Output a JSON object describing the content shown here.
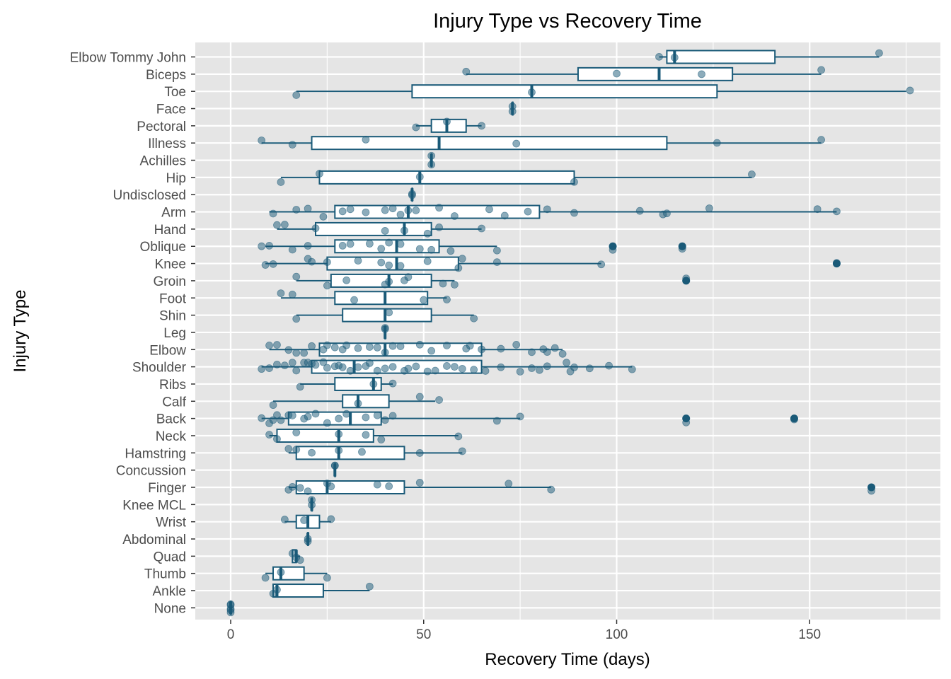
{
  "chart_data": {
    "type": "boxplot",
    "title": "Injury Type vs Recovery Time",
    "xlabel": "Recovery Time (days)",
    "ylabel": "Injury Type",
    "xlim": [
      -9,
      184
    ],
    "x_ticks": [
      0,
      50,
      100,
      150
    ],
    "grid": true,
    "colors": {
      "panel": "#e5e5e5",
      "grid": "#ffffff",
      "box_stroke": "#1a5a78",
      "box_fill": "#ffffff",
      "point": "#1a5a78",
      "tick_text": "#4d4d4d",
      "tick_mark": "#333333"
    },
    "categories": [
      "Elbow Tommy John",
      "Biceps",
      "Toe",
      "Face",
      "Pectoral",
      "Illness",
      "Achilles",
      "Hip",
      "Undisclosed",
      "Arm",
      "Hand",
      "Oblique",
      "Knee",
      "Groin",
      "Foot",
      "Shin",
      "Leg",
      "Elbow",
      "Shoulder",
      "Ribs",
      "Calf",
      "Back",
      "Neck",
      "Hamstring",
      "Concussion",
      "Finger",
      "Knee MCL",
      "Wrist",
      "Abdominal",
      "Quad",
      "Thumb",
      "Ankle",
      "None"
    ],
    "boxes": [
      {
        "category": "Elbow Tommy John",
        "whisker_low": 111,
        "q1": 113,
        "median": 115,
        "q3": 141,
        "whisker_high": 168,
        "outliers": []
      },
      {
        "category": "Biceps",
        "whisker_low": 61,
        "q1": 90,
        "median": 111,
        "q3": 130,
        "whisker_high": 153,
        "outliers": []
      },
      {
        "category": "Toe",
        "whisker_low": 17,
        "q1": 47,
        "median": 78,
        "q3": 126,
        "whisker_high": 175,
        "outliers": []
      },
      {
        "category": "Face",
        "whisker_low": 73,
        "q1": 73,
        "median": 73,
        "q3": 73,
        "whisker_high": 73,
        "outliers": []
      },
      {
        "category": "Pectoral",
        "whisker_low": 48,
        "q1": 52,
        "median": 56,
        "q3": 61,
        "whisker_high": 65,
        "outliers": []
      },
      {
        "category": "Illness",
        "whisker_low": 8,
        "q1": 21,
        "median": 54,
        "q3": 113,
        "whisker_high": 153,
        "outliers": []
      },
      {
        "category": "Achilles",
        "whisker_low": 52,
        "q1": 52,
        "median": 52,
        "q3": 52,
        "whisker_high": 52,
        "outliers": []
      },
      {
        "category": "Hip",
        "whisker_low": 13,
        "q1": 23,
        "median": 49,
        "q3": 89,
        "whisker_high": 135,
        "outliers": []
      },
      {
        "category": "Undisclosed",
        "whisker_low": 47,
        "q1": 47,
        "median": 47,
        "q3": 47,
        "whisker_high": 47,
        "outliers": []
      },
      {
        "category": "Arm",
        "whisker_low": 10,
        "q1": 27,
        "median": 46,
        "q3": 80,
        "whisker_high": 157,
        "outliers": []
      },
      {
        "category": "Hand",
        "whisker_low": 12,
        "q1": 22,
        "median": 45,
        "q3": 52,
        "whisker_high": 65,
        "outliers": []
      },
      {
        "category": "Oblique",
        "whisker_low": 9,
        "q1": 27,
        "median": 43,
        "q3": 54,
        "whisker_high": 69,
        "outliers": [
          99,
          117
        ]
      },
      {
        "category": "Knee",
        "whisker_low": 9,
        "q1": 25,
        "median": 43,
        "q3": 59,
        "whisker_high": 96,
        "outliers": [
          157
        ]
      },
      {
        "category": "Groin",
        "whisker_low": 17,
        "q1": 26,
        "median": 41,
        "q3": 52,
        "whisker_high": 58,
        "outliers": [
          118
        ]
      },
      {
        "category": "Foot",
        "whisker_low": 13,
        "q1": 27,
        "median": 40,
        "q3": 51,
        "whisker_high": 56,
        "outliers": []
      },
      {
        "category": "Shin",
        "whisker_low": 17,
        "q1": 29,
        "median": 40,
        "q3": 52,
        "whisker_high": 63,
        "outliers": []
      },
      {
        "category": "Leg",
        "whisker_low": 40,
        "q1": 40,
        "median": 40,
        "q3": 40,
        "whisker_high": 40,
        "outliers": []
      },
      {
        "category": "Elbow",
        "whisker_low": 10,
        "q1": 23,
        "median": 40,
        "q3": 65,
        "whisker_high": 86,
        "outliers": []
      },
      {
        "category": "Shoulder",
        "whisker_low": 8,
        "q1": 21,
        "median": 32,
        "q3": 65,
        "whisker_high": 104,
        "outliers": []
      },
      {
        "category": "Ribs",
        "whisker_low": 18,
        "q1": 27,
        "median": 37,
        "q3": 39,
        "whisker_high": 42,
        "outliers": []
      },
      {
        "category": "Calf",
        "whisker_low": 11,
        "q1": 29,
        "median": 33,
        "q3": 41,
        "whisker_high": 53,
        "outliers": []
      },
      {
        "category": "Back",
        "whisker_low": 8,
        "q1": 15,
        "median": 31,
        "q3": 39,
        "whisker_high": 75,
        "outliers": [
          118,
          146
        ]
      },
      {
        "category": "Neck",
        "whisker_low": 10,
        "q1": 12,
        "median": 28,
        "q3": 37,
        "whisker_high": 59,
        "outliers": []
      },
      {
        "category": "Hamstring",
        "whisker_low": 15,
        "q1": 17,
        "median": 28,
        "q3": 45,
        "whisker_high": 60,
        "outliers": []
      },
      {
        "category": "Concussion",
        "whisker_low": 27,
        "q1": 27,
        "median": 27,
        "q3": 27,
        "whisker_high": 27,
        "outliers": []
      },
      {
        "category": "Finger",
        "whisker_low": 15,
        "q1": 17,
        "median": 25,
        "q3": 45,
        "whisker_high": 83,
        "outliers": [
          166
        ]
      },
      {
        "category": "Knee MCL",
        "whisker_low": 21,
        "q1": 21,
        "median": 21,
        "q3": 21,
        "whisker_high": 21,
        "outliers": []
      },
      {
        "category": "Wrist",
        "whisker_low": 14,
        "q1": 17,
        "median": 20,
        "q3": 23,
        "whisker_high": 26,
        "outliers": []
      },
      {
        "category": "Abdominal",
        "whisker_low": 20,
        "q1": 20,
        "median": 20,
        "q3": 20,
        "whisker_high": 20,
        "outliers": []
      },
      {
        "category": "Quad",
        "whisker_low": 16,
        "q1": 16,
        "median": 17,
        "q3": 17,
        "whisker_high": 18,
        "outliers": []
      },
      {
        "category": "Thumb",
        "whisker_low": 9,
        "q1": 11,
        "median": 13,
        "q3": 19,
        "whisker_high": 25,
        "outliers": []
      },
      {
        "category": "Ankle",
        "whisker_low": 11,
        "q1": 11,
        "median": 12,
        "q3": 24,
        "whisker_high": 36,
        "outliers": []
      },
      {
        "category": "None",
        "whisker_low": 0,
        "q1": 0,
        "median": 0,
        "q3": 0,
        "whisker_high": 0,
        "outliers": []
      }
    ],
    "points": [
      {
        "category": "Elbow Tommy John",
        "x": [
          111,
          115,
          168
        ]
      },
      {
        "category": "Biceps",
        "x": [
          61,
          100,
          122,
          153
        ]
      },
      {
        "category": "Toe",
        "x": [
          17,
          78,
          176
        ]
      },
      {
        "category": "Face",
        "x": [
          73,
          73
        ]
      },
      {
        "category": "Pectoral",
        "x": [
          48,
          56,
          65
        ]
      },
      {
        "category": "Illness",
        "x": [
          8,
          16,
          35,
          74,
          126,
          153
        ]
      },
      {
        "category": "Achilles",
        "x": [
          52,
          52
        ]
      },
      {
        "category": "Hip",
        "x": [
          13,
          23,
          49,
          89,
          135
        ]
      },
      {
        "category": "Undisclosed",
        "x": [
          47,
          47
        ]
      },
      {
        "category": "Arm",
        "x": [
          11,
          17,
          20,
          24,
          29,
          31,
          35,
          40,
          42,
          44,
          46,
          48,
          54,
          58,
          67,
          71,
          77,
          82,
          89,
          106,
          112,
          113,
          124,
          152,
          157
        ]
      },
      {
        "category": "Hand",
        "x": [
          12,
          14,
          22,
          40,
          45,
          51,
          54,
          65
        ]
      },
      {
        "category": "Oblique",
        "x": [
          8,
          10,
          16,
          20,
          29,
          31,
          36,
          39,
          41,
          44,
          49,
          52,
          57,
          69,
          99,
          117
        ]
      },
      {
        "category": "Knee",
        "x": [
          9,
          11,
          20,
          21,
          25,
          33,
          39,
          41,
          44,
          51,
          59,
          60,
          69,
          96,
          157
        ]
      },
      {
        "category": "Groin",
        "x": [
          17,
          25,
          30,
          40,
          41,
          45,
          46,
          55,
          58,
          118
        ]
      },
      {
        "category": "Foot",
        "x": [
          13,
          16,
          32,
          50,
          56
        ]
      },
      {
        "category": "Shin",
        "x": [
          17,
          41,
          63
        ]
      },
      {
        "category": "Leg",
        "x": [
          40,
          40
        ]
      },
      {
        "category": "Elbow",
        "x": [
          10,
          12,
          15,
          17,
          19,
          21,
          24,
          25,
          27,
          29,
          30,
          33,
          36,
          38,
          40,
          42,
          44,
          49,
          52,
          56,
          61,
          62,
          65,
          70,
          74,
          78,
          81,
          82,
          84,
          86
        ]
      },
      {
        "category": "Shoulder",
        "x": [
          8,
          10,
          12,
          14,
          16,
          17,
          19,
          20,
          21,
          22,
          24,
          25,
          27,
          28,
          29,
          31,
          33,
          35,
          36,
          38,
          40,
          42,
          45,
          46,
          48,
          51,
          53,
          56,
          58,
          60,
          63,
          66,
          70,
          75,
          78,
          80,
          82,
          87,
          88,
          89,
          93,
          98,
          104
        ]
      },
      {
        "category": "Ribs",
        "x": [
          18,
          37,
          42
        ]
      },
      {
        "category": "Calf",
        "x": [
          11,
          33,
          49,
          54
        ]
      },
      {
        "category": "Back",
        "x": [
          8,
          10,
          11,
          12,
          13,
          15,
          16,
          19,
          20,
          22,
          25,
          28,
          30,
          35,
          38,
          40,
          42,
          69,
          75,
          118,
          146
        ]
      },
      {
        "category": "Neck",
        "x": [
          10,
          12,
          17,
          28,
          35,
          39,
          59
        ]
      },
      {
        "category": "Hamstring",
        "x": [
          15,
          17,
          21,
          28,
          34,
          49,
          60
        ]
      },
      {
        "category": "Concussion",
        "x": [
          27,
          27
        ]
      },
      {
        "category": "Finger",
        "x": [
          15,
          16,
          18,
          20,
          25,
          26,
          38,
          41,
          49,
          72,
          83,
          166
        ]
      },
      {
        "category": "Knee MCL",
        "x": [
          21,
          21
        ]
      },
      {
        "category": "Wrist",
        "x": [
          14,
          19,
          26
        ]
      },
      {
        "category": "Abdominal",
        "x": [
          20,
          20
        ]
      },
      {
        "category": "Quad",
        "x": [
          16,
          17,
          18
        ]
      },
      {
        "category": "Thumb",
        "x": [
          9,
          13,
          25
        ]
      },
      {
        "category": "Ankle",
        "x": [
          11,
          12,
          36
        ]
      },
      {
        "category": "None",
        "x": [
          0,
          0,
          0,
          0,
          0
        ]
      }
    ]
  }
}
